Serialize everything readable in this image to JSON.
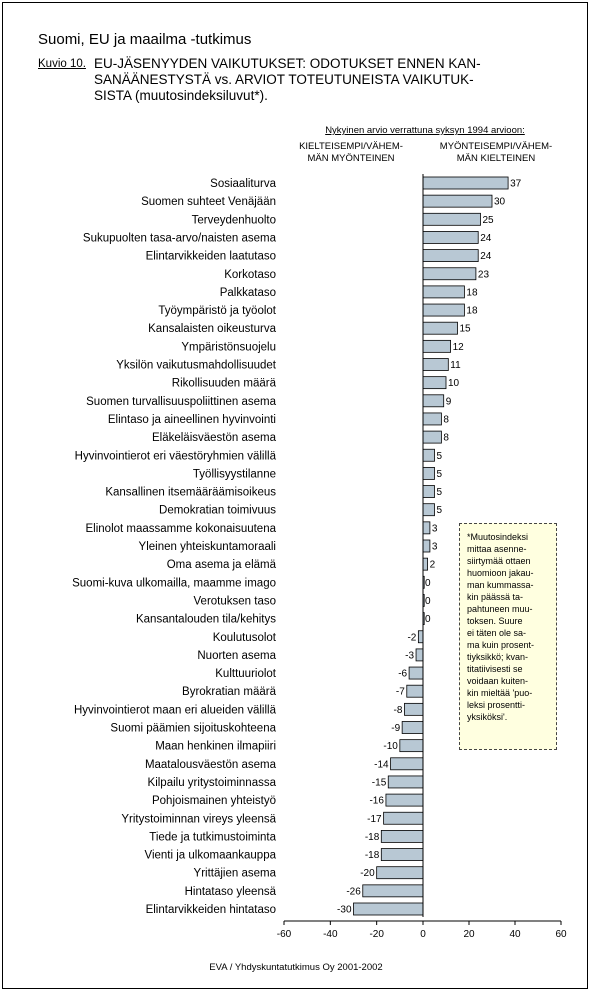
{
  "page": {
    "suptitle": "Suomi, EU ja maailma -tutkimus",
    "kuvio": "Kuvio 10.",
    "title": "EU-JÄSENYYDEN VAIKUTUKSET: ODOTUKSET ENNEN KAN-\nSANÄÄNESTYSTÄ vs. ARVIOT TOTEUTUNEISTA VAIKUTUK-\nSISTA (muutosindeksiluvut*).",
    "header": "Nykyinen arvio verrattuna syksyn 1994 arvioon:",
    "neg_label": "KIELTEISEMPI/VÄHEM-\nMÄN MYÖNTEINEN",
    "pos_label": "MYÖNTEISEMPI/VÄHEM-\nMÄN KIELTEINEN",
    "note": "*Muutosindeksi\nmittaa asenne-\nsiirtymää ottaen\nhuomioon jakau-\nman kummassa-\nkin päässä ta-\npahtuneen muu-\ntoksen. Suure\nei täten ole sa-\nma kuin prosent-\ntiyksikkö; kvan-\ntitatiivisesti se\nvoidaan kuiten-\nkin mieltää 'puo-\nleksi prosentti-\nyksiköksi'.",
    "footer": "EVA / Yhdyskuntatutkimus Oy 2001-2002"
  },
  "chart_data": {
    "type": "bar",
    "orientation": "horizontal",
    "categories": [
      "Sosiaaliturva",
      "Suomen suhteet Venäjään",
      "Terveydenhuolto",
      "Sukupuolten tasa-arvo/naisten asema",
      "Elintarvikkeiden laatutaso",
      "Korkotaso",
      "Palkkataso",
      "Työympäristö ja työolot",
      "Kansalaisten oikeusturva",
      "Ympäristönsuojelu",
      "Yksilön vaikutusmahdollisuudet",
      "Rikollisuuden määrä",
      "Suomen turvallisuuspoliittinen asema",
      "Elintaso ja aineellinen hyvinvointi",
      "Eläkeläisväestön asema",
      "Hyvinvointierot eri väestöryhmien välillä",
      "Työllisyystilanne",
      "Kansallinen itsemääräämisoikeus",
      "Demokratian toimivuus",
      "Elinolot maassamme kokonaisuutena",
      "Yleinen yhteiskuntamoraali",
      "Oma asema ja elämä",
      "Suomi-kuva ulkomailla, maamme imago",
      "Verotuksen taso",
      "Kansantalouden tila/kehitys",
      "Koulutusolot",
      "Nuorten asema",
      "Kulttuuriolot",
      "Byrokratian määrä",
      "Hyvinvointierot maan eri alueiden välillä",
      "Suomi päämien sijoituskohteena",
      "Maan henkinen ilmapiiri",
      "Maatalousväestön asema",
      "Kilpailu yritystoiminnassa",
      "Pohjoismainen yhteistyö",
      "Yritystoiminnan vireys yleensä",
      "Tiede ja tutkimustoiminta",
      "Vienti ja ulkomaankauppa",
      "Yrittäjien asema",
      "Hintataso yleensä",
      "Elintarvikkeiden hintataso"
    ],
    "values": [
      37,
      30,
      25,
      24,
      24,
      23,
      18,
      18,
      15,
      12,
      11,
      10,
      9,
      8,
      8,
      5,
      5,
      5,
      5,
      3,
      3,
      2,
      0,
      0,
      0,
      -2,
      -3,
      -6,
      -7,
      -8,
      -9,
      -10,
      -14,
      -15,
      -16,
      -17,
      -18,
      -18,
      -20,
      -26,
      -30
    ],
    "value_labels": [
      "37",
      "30",
      "25",
      "24",
      "24",
      "23",
      "18",
      "18",
      "15",
      "12",
      "11",
      "10",
      "9",
      "8",
      "8",
      "5",
      "5",
      "5",
      "5",
      "3",
      "3",
      "2",
      "0",
      "0",
      "0",
      "-2",
      "-3",
      "-6",
      "-7",
      "-8",
      "-9",
      "-10",
      "-14",
      "-15",
      "-16",
      "-17",
      "-18",
      "-18",
      "-20",
      "-26",
      "-30"
    ],
    "xlim": [
      -60,
      60
    ],
    "xticks": [
      -60,
      -40,
      -20,
      0,
      20,
      40,
      60
    ],
    "grid": false,
    "bar_color": "#b8c8d4",
    "bar_edge": "#000000"
  }
}
